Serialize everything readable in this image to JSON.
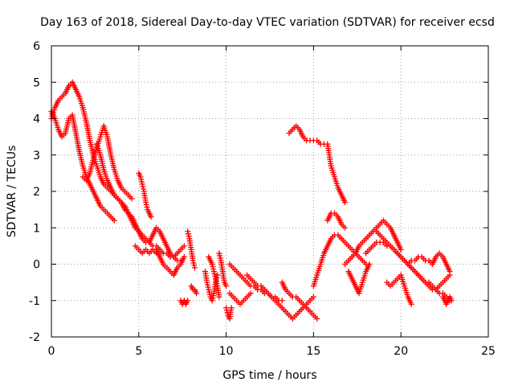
{
  "chart_data": {
    "type": "scatter",
    "title": "Day 163 of 2018, Sidereal Day-to-day VTEC variation (SDTVAR) for receiver ecsd",
    "xlabel": "GPS time / hours",
    "ylabel": "SDTVAR / TECUs",
    "xlim": [
      0,
      25
    ],
    "ylim": [
      -2,
      6
    ],
    "x_ticks": [
      0,
      5,
      10,
      15,
      20,
      25
    ],
    "y_ticks": [
      -2,
      -1,
      0,
      1,
      2,
      3,
      4,
      5,
      6
    ],
    "grid": true,
    "marker": "+",
    "color": "#ff0000",
    "series": [
      {
        "name": "ecsd",
        "traces": [
          {
            "x": [
              0.0,
              0.2,
              0.4,
              0.6,
              0.8,
              1.0,
              1.2,
              1.4,
              1.6,
              1.8,
              2.0,
              2.2,
              2.4,
              2.6,
              2.8,
              3.0,
              3.2,
              3.4,
              3.6,
              3.8,
              4.0,
              4.2,
              4.4,
              4.6,
              4.8,
              5.0,
              5.2,
              5.4,
              5.6,
              5.8,
              6.0,
              6.2,
              6.4,
              6.6,
              6.8,
              7.0,
              7.2,
              7.4
            ],
            "y": [
              4.0,
              4.3,
              4.5,
              4.6,
              4.7,
              4.9,
              5.0,
              4.8,
              4.6,
              4.3,
              3.9,
              3.4,
              3.0,
              2.7,
              2.4,
              2.2,
              2.1,
              2.0,
              1.9,
              1.8,
              1.7,
              1.5,
              1.4,
              1.2,
              1.0,
              0.9,
              0.8,
              0.7,
              0.6,
              0.5,
              0.5,
              0.4,
              0.3,
              0.3,
              0.2,
              0.2,
              0.1,
              0.1
            ]
          },
          {
            "x": [
              0.0,
              0.2,
              0.4,
              0.6,
              0.8,
              1.0,
              1.2,
              1.4,
              1.6,
              1.8,
              2.0,
              2.2,
              2.4,
              2.6,
              2.8,
              3.0,
              3.2,
              3.4,
              3.6
            ],
            "y": [
              4.2,
              4.0,
              3.7,
              3.5,
              3.6,
              4.0,
              4.1,
              3.6,
              3.1,
              2.7,
              2.4,
              2.2,
              2.0,
              1.8,
              1.6,
              1.5,
              1.4,
              1.3,
              1.2
            ]
          },
          {
            "x": [
              1.8,
              2.0,
              2.2,
              2.4,
              2.6,
              2.8,
              3.0,
              3.2,
              3.4,
              3.6,
              3.8,
              4.0,
              4.2,
              4.4,
              4.6
            ],
            "y": [
              2.4,
              2.3,
              2.5,
              2.9,
              3.2,
              3.5,
              3.8,
              3.5,
              3.0,
              2.6,
              2.3,
              2.1,
              2.0,
              1.9,
              1.8
            ]
          },
          {
            "x": [
              2.6,
              2.8,
              3.0,
              3.2,
              3.4,
              3.6,
              3.8,
              4.0,
              4.2,
              4.4,
              4.6,
              4.8,
              5.0,
              5.2,
              5.4,
              5.6,
              5.8,
              6.0,
              6.2,
              6.4,
              6.6,
              6.8,
              7.0,
              7.2,
              7.4,
              7.6
            ],
            "y": [
              3.3,
              3.0,
              2.6,
              2.3,
              2.1,
              1.9,
              1.8,
              1.7,
              1.6,
              1.4,
              1.3,
              1.1,
              0.9,
              0.7,
              0.6,
              0.6,
              0.8,
              1.0,
              0.9,
              0.7,
              0.5,
              0.3,
              0.2,
              0.3,
              0.4,
              0.5
            ]
          },
          {
            "x": [
              4.8,
              5.0,
              5.2,
              5.4,
              5.6,
              5.8,
              6.0,
              6.2
            ],
            "y": [
              0.5,
              0.4,
              0.3,
              0.4,
              0.3,
              0.4,
              0.3,
              0.4
            ]
          },
          {
            "x": [
              5.0,
              5.1,
              5.2,
              5.3,
              5.4,
              5.5,
              5.6,
              5.7
            ],
            "y": [
              2.5,
              2.4,
              2.2,
              2.0,
              1.7,
              1.5,
              1.4,
              1.3
            ]
          },
          {
            "x": [
              6.0,
              6.2,
              6.4,
              6.6,
              6.8,
              7.0,
              7.2,
              7.4,
              7.6
            ],
            "y": [
              0.4,
              0.2,
              0.0,
              -0.1,
              -0.2,
              -0.3,
              -0.1,
              0.0,
              0.2
            ]
          },
          {
            "x": [
              7.4,
              7.5,
              7.6,
              7.7,
              7.8
            ],
            "y": [
              -1.0,
              -1.1,
              -1.0,
              -1.1,
              -1.0
            ]
          },
          {
            "x": [
              7.8,
              7.9,
              8.0,
              8.1,
              8.2
            ],
            "y": [
              0.9,
              0.7,
              0.4,
              0.1,
              -0.1
            ]
          },
          {
            "x": [
              8.0,
              8.1,
              8.2,
              8.3
            ],
            "y": [
              -0.6,
              -0.7,
              -0.7,
              -0.8
            ]
          },
          {
            "x": [
              8.8,
              8.9,
              9.0,
              9.1,
              9.2,
              9.3,
              9.4,
              9.5
            ],
            "y": [
              -0.2,
              -0.5,
              -0.7,
              -0.9,
              -1.0,
              -0.8,
              -0.5,
              -0.3
            ]
          },
          {
            "x": [
              9.0,
              9.1,
              9.2,
              9.3,
              9.4,
              9.5,
              9.6
            ],
            "y": [
              0.2,
              0.1,
              0.0,
              -0.2,
              -0.4,
              -0.6,
              -0.9
            ]
          },
          {
            "x": [
              9.6,
              9.7,
              9.8,
              9.9,
              10.0
            ],
            "y": [
              0.3,
              0.1,
              -0.2,
              -0.5,
              -0.6
            ]
          },
          {
            "x": [
              10.0,
              10.1,
              10.2,
              10.3
            ],
            "y": [
              -1.2,
              -1.4,
              -1.5,
              -1.2
            ]
          },
          {
            "x": [
              10.2,
              10.4,
              10.6,
              10.8,
              11.0,
              11.2,
              11.4,
              11.6,
              11.8,
              12.0,
              12.2,
              12.4,
              12.6,
              12.8,
              13.0,
              13.2
            ],
            "y": [
              0.0,
              -0.1,
              -0.2,
              -0.3,
              -0.4,
              -0.5,
              -0.6,
              -0.6,
              -0.7,
              -0.7,
              -0.8,
              -0.8,
              -0.9,
              -0.9,
              -1.0,
              -1.0
            ]
          },
          {
            "x": [
              10.2,
              10.4,
              10.6,
              10.8,
              11.0,
              11.2,
              11.4
            ],
            "y": [
              -0.8,
              -0.9,
              -1.0,
              -1.1,
              -1.0,
              -0.9,
              -0.8
            ]
          },
          {
            "x": [
              11.2,
              11.4,
              11.6,
              11.8,
              12.0,
              12.2,
              12.4,
              12.6,
              12.8,
              13.0,
              13.2,
              13.4,
              13.6,
              13.8,
              14.0,
              14.2,
              14.4,
              14.6,
              14.8,
              15.0
            ],
            "y": [
              -0.3,
              -0.4,
              -0.5,
              -0.6,
              -0.6,
              -0.7,
              -0.8,
              -0.9,
              -1.0,
              -1.1,
              -1.2,
              -1.3,
              -1.4,
              -1.5,
              -1.4,
              -1.3,
              -1.2,
              -1.1,
              -1.0,
              -0.9
            ]
          },
          {
            "x": [
              13.2,
              13.4,
              13.6,
              13.8,
              14.0,
              14.2,
              14.4,
              14.6,
              14.8,
              15.0,
              15.2
            ],
            "y": [
              -0.5,
              -0.7,
              -0.8,
              -0.9,
              -0.9,
              -1.0,
              -1.1,
              -1.2,
              -1.3,
              -1.4,
              -1.5
            ]
          },
          {
            "x": [
              13.6,
              13.8,
              14.0,
              14.2,
              14.4,
              14.6,
              14.8,
              15.0,
              15.2,
              15.4,
              15.6,
              15.8,
              16.0,
              16.2,
              16.4,
              16.6,
              16.8
            ],
            "y": [
              3.6,
              3.7,
              3.8,
              3.7,
              3.5,
              3.4,
              3.4,
              3.4,
              3.4,
              3.3,
              3.3,
              3.3,
              2.7,
              2.4,
              2.1,
              1.9,
              1.7
            ]
          },
          {
            "x": [
              15.0,
              15.2,
              15.4,
              15.6,
              15.8,
              16.0,
              16.2,
              16.4,
              16.6,
              16.8,
              17.0,
              17.2,
              17.4,
              17.6,
              17.8,
              18.0
            ],
            "y": [
              -0.6,
              -0.3,
              0.0,
              0.3,
              0.5,
              0.7,
              0.8,
              0.8,
              0.7,
              0.6,
              0.5,
              0.4,
              0.3,
              0.2,
              0.1,
              0.0
            ]
          },
          {
            "x": [
              15.8,
              16.0,
              16.2,
              16.4,
              16.6,
              16.8
            ],
            "y": [
              1.2,
              1.4,
              1.4,
              1.3,
              1.1,
              1.0
            ]
          },
          {
            "x": [
              16.8,
              17.0,
              17.2,
              17.4,
              17.6,
              17.8,
              18.0,
              18.2,
              18.4,
              18.6,
              18.8,
              19.0,
              19.2,
              19.4,
              19.6,
              19.8,
              20.0
            ],
            "y": [
              0.0,
              0.1,
              0.2,
              0.3,
              0.5,
              0.6,
              0.7,
              0.8,
              0.9,
              1.0,
              1.1,
              1.2,
              1.1,
              1.0,
              0.8,
              0.6,
              0.4
            ]
          },
          {
            "x": [
              17.0,
              17.2,
              17.4,
              17.6,
              17.8,
              18.0,
              18.2
            ],
            "y": [
              -0.2,
              -0.4,
              -0.6,
              -0.8,
              -0.5,
              -0.2,
              0.0
            ]
          },
          {
            "x": [
              18.0,
              18.2,
              18.4,
              18.6,
              18.8,
              19.0,
              19.2,
              19.4,
              19.6,
              19.8,
              20.0,
              20.2,
              20.4,
              20.6,
              20.8,
              21.0,
              21.2,
              21.4,
              21.6,
              21.8,
              22.0,
              22.2,
              22.4,
              22.6,
              22.8
            ],
            "y": [
              0.3,
              0.4,
              0.5,
              0.6,
              0.6,
              0.6,
              0.5,
              0.5,
              0.4,
              0.3,
              0.2,
              0.1,
              0.0,
              -0.1,
              -0.2,
              -0.3,
              -0.4,
              -0.5,
              -0.6,
              -0.7,
              -0.7,
              -0.6,
              -0.5,
              -0.4,
              -0.3
            ]
          },
          {
            "x": [
              18.6,
              18.8,
              19.0,
              19.2,
              19.4,
              19.6,
              19.8,
              20.0,
              20.2,
              20.4,
              20.6,
              20.8,
              21.0,
              21.2,
              21.4,
              21.6,
              21.8,
              22.0,
              22.2,
              22.4,
              22.6,
              22.8
            ],
            "y": [
              0.9,
              0.8,
              0.7,
              0.6,
              0.5,
              0.4,
              0.3,
              0.2,
              0.1,
              0.0,
              -0.1,
              -0.2,
              -0.3,
              -0.4,
              -0.5,
              -0.5,
              -0.6,
              -0.7,
              -0.8,
              -0.8,
              -0.9,
              -1.0
            ]
          },
          {
            "x": [
              19.2,
              19.4,
              19.6,
              19.8,
              20.0,
              20.2,
              20.4,
              20.6
            ],
            "y": [
              -0.5,
              -0.6,
              -0.5,
              -0.4,
              -0.3,
              -0.6,
              -0.9,
              -1.1
            ]
          },
          {
            "x": [
              20.4,
              20.6,
              20.8,
              21.0,
              21.2,
              21.4,
              21.6,
              21.8,
              22.0,
              22.2,
              22.4,
              22.6,
              22.8
            ],
            "y": [
              0.0,
              0.1,
              0.1,
              0.2,
              0.2,
              0.1,
              0.1,
              0.0,
              0.2,
              0.3,
              0.2,
              0.0,
              -0.2
            ]
          },
          {
            "x": [
              22.4,
              22.5,
              22.6,
              22.7,
              22.8,
              22.9
            ],
            "y": [
              -0.9,
              -1.0,
              -1.1,
              -1.0,
              -0.9,
              -1.0
            ]
          }
        ]
      }
    ]
  }
}
